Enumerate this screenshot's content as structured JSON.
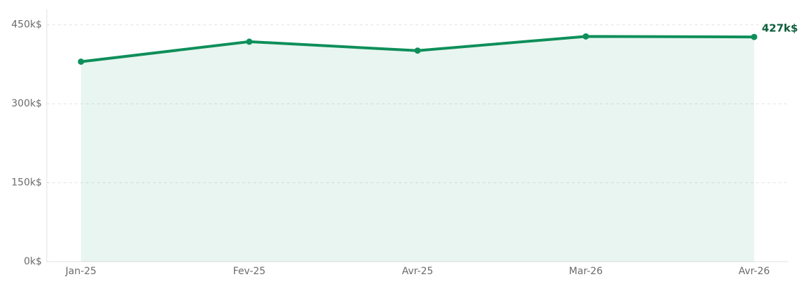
{
  "chart_data": {
    "type": "line",
    "categories": [
      "Jan-25",
      "Fev-25",
      "Avr-25",
      "Mar-26",
      "Avr-26"
    ],
    "series": [
      {
        "color": "#0e8f5a",
        "values": [
          380,
          418,
          401,
          428,
          427
        ],
        "value_labels": [
          null,
          null,
          null,
          null,
          "427k$"
        ]
      }
    ],
    "ylim": [
      0,
      480
    ],
    "yticks": [
      {
        "value": 0,
        "label": "0k$"
      },
      {
        "value": 150,
        "label": "150k$"
      },
      {
        "value": 300,
        "label": "300k$"
      },
      {
        "value": 450,
        "label": "450k$"
      }
    ],
    "grid": true,
    "area": true
  }
}
